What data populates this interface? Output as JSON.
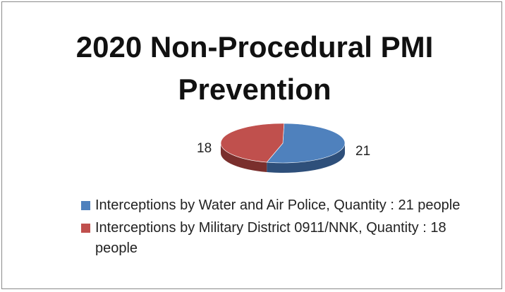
{
  "chart_data": {
    "type": "pie",
    "title": "2020 Non-Procedural PMI Prevention",
    "slices": [
      {
        "label": "Interceptions by Water and Air Police, Quantity : 21 people",
        "value": 21,
        "color": "#4f81bd",
        "side": "#2e4f7a"
      },
      {
        "label": "Interceptions by Military District 0911/NNK, Quantity : 18 people",
        "value": 18,
        "color": "#c0504d",
        "side": "#7a2f2d"
      }
    ],
    "data_labels": [
      "21",
      "18"
    ],
    "legend_position": "bottom",
    "style": "3d"
  }
}
